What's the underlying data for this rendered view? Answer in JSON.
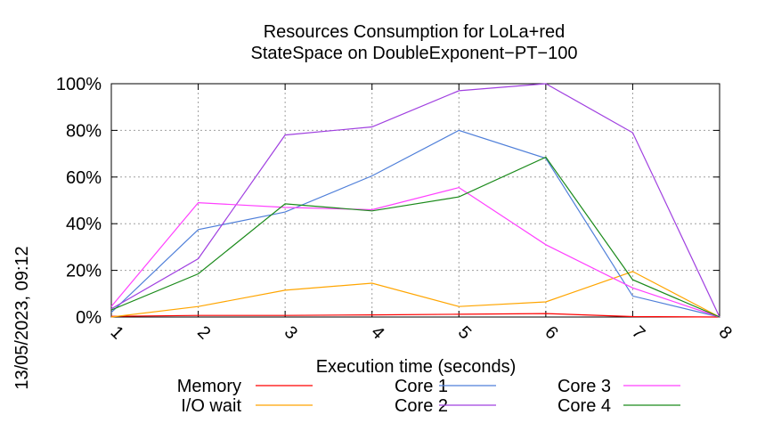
{
  "chart_data": {
    "type": "line",
    "title_lines": [
      "Resources Consumption for LoLa+red",
      "StateSpace on DoubleExponent−PT−100"
    ],
    "xlabel": "Execution time (seconds)",
    "ylabel": "",
    "x": [
      1,
      2,
      3,
      4,
      5,
      6,
      7,
      8
    ],
    "xlim": [
      1,
      8
    ],
    "ylim": [
      0,
      100
    ],
    "x_tick_labels": [
      "1",
      "2",
      "3",
      "4",
      "5",
      "6",
      "7",
      "8"
    ],
    "y_ticks": [
      0,
      20,
      40,
      60,
      80,
      100
    ],
    "y_tick_labels": [
      "0%",
      "20%",
      "40%",
      "60%",
      "80%",
      "100%"
    ],
    "grid": true,
    "legend_position": "bottom",
    "series": [
      {
        "name": "Memory",
        "color": "#ff0000",
        "values": [
          0.3,
          0.7,
          0.7,
          0.9,
          1.2,
          1.5,
          0.2,
          0
        ]
      },
      {
        "name": "I/O wait",
        "color": "#ffa500",
        "values": [
          0,
          4.5,
          11.5,
          14.5,
          4.5,
          6.5,
          19.5,
          0
        ]
      },
      {
        "name": "Core 1",
        "color": "#4f7fd9",
        "values": [
          2,
          37.5,
          45,
          60.5,
          80,
          68,
          9,
          0
        ]
      },
      {
        "name": "Core 2",
        "color": "#a040e0",
        "values": [
          3.5,
          25,
          78,
          81.5,
          97,
          100,
          79,
          0
        ]
      },
      {
        "name": "Core 3",
        "color": "#ff40ff",
        "values": [
          4.5,
          49,
          47,
          46,
          55.5,
          31,
          12.5,
          0
        ]
      },
      {
        "name": "Core 4",
        "color": "#1a8a1a",
        "values": [
          3,
          18.5,
          48.5,
          45.5,
          51.5,
          68.5,
          16,
          0
        ]
      }
    ]
  },
  "timestamp": "13/05/2023, 09:12"
}
